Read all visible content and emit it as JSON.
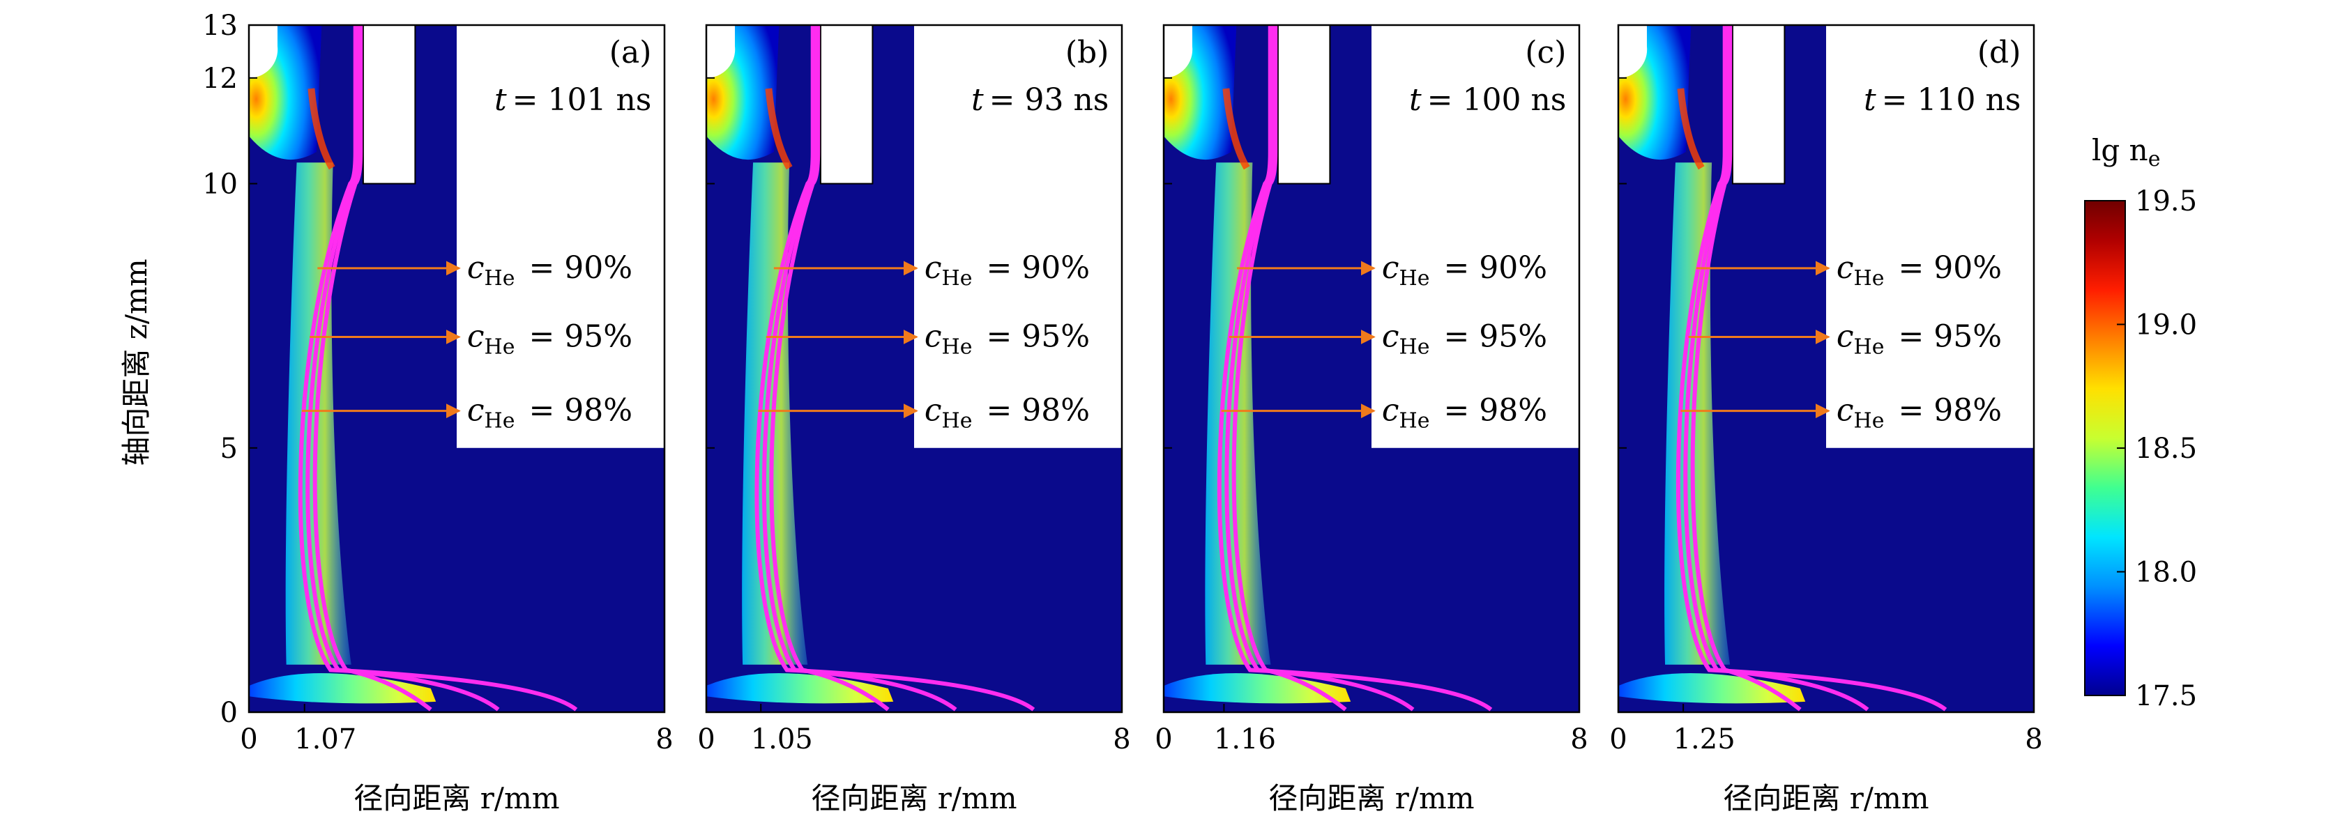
{
  "colors": {
    "plasma_background": "#0a0a8c",
    "contour_line": "#ff2df0",
    "arrow": "#f07a1c",
    "colormap": [
      "#00008f",
      "#0000ff",
      "#0090ff",
      "#00e5ff",
      "#40ff90",
      "#c8ff30",
      "#ffe000",
      "#ff8000",
      "#ff1e00",
      "#b00000",
      "#700000"
    ]
  },
  "chart_data": {
    "type": "heatmap",
    "ylabel": "轴向距离 z/mm",
    "xlabel": "径向距离 r/mm",
    "ylim": [
      0,
      13
    ],
    "xlim": [
      0,
      8
    ],
    "y_ticks": [
      "0",
      "5",
      "10",
      "12",
      "13"
    ],
    "y_tick_values": [
      0,
      5,
      10,
      12,
      13
    ],
    "colorbar": {
      "label": "lg n",
      "label_sub": "e",
      "range": [
        17.5,
        19.5
      ],
      "ticks": [
        "17.5",
        "18.0",
        "18.5",
        "19.0",
        "19.5"
      ],
      "tick_values": [
        17.5,
        18.0,
        18.5,
        19.0,
        19.5
      ]
    },
    "panels": [
      {
        "label": "(a)",
        "time_t": "t",
        "time_value": "= 101 ns",
        "x_ticks": [
          "0",
          "1.07",
          "8"
        ],
        "x_tick_values": [
          0,
          1.07,
          8
        ],
        "front_r": 1.07
      },
      {
        "label": "(b)",
        "time_t": "t",
        "time_value": "= 93 ns",
        "x_ticks": [
          "0",
          "1.05",
          "8"
        ],
        "x_tick_values": [
          0,
          1.05,
          8
        ],
        "front_r": 1.05
      },
      {
        "label": "(c)",
        "time_t": "t",
        "time_value": "= 100 ns",
        "x_ticks": [
          "0",
          "1.16",
          "8"
        ],
        "x_tick_values": [
          0,
          1.16,
          8
        ],
        "front_r": 1.16
      },
      {
        "label": "(d)",
        "time_t": "t",
        "time_value": "= 110 ns",
        "x_ticks": [
          "0",
          "1.25",
          "8"
        ],
        "x_tick_values": [
          0,
          1.25,
          8
        ],
        "front_r": 1.25
      }
    ],
    "contours": [
      {
        "c": "c",
        "sub": "He",
        "value": "= 90%",
        "z": 8.4
      },
      {
        "c": "c",
        "sub": "He",
        "value": "= 95%",
        "z": 7.1
      },
      {
        "c": "c",
        "sub": "He",
        "value": "= 98%",
        "z": 5.7
      }
    ]
  }
}
